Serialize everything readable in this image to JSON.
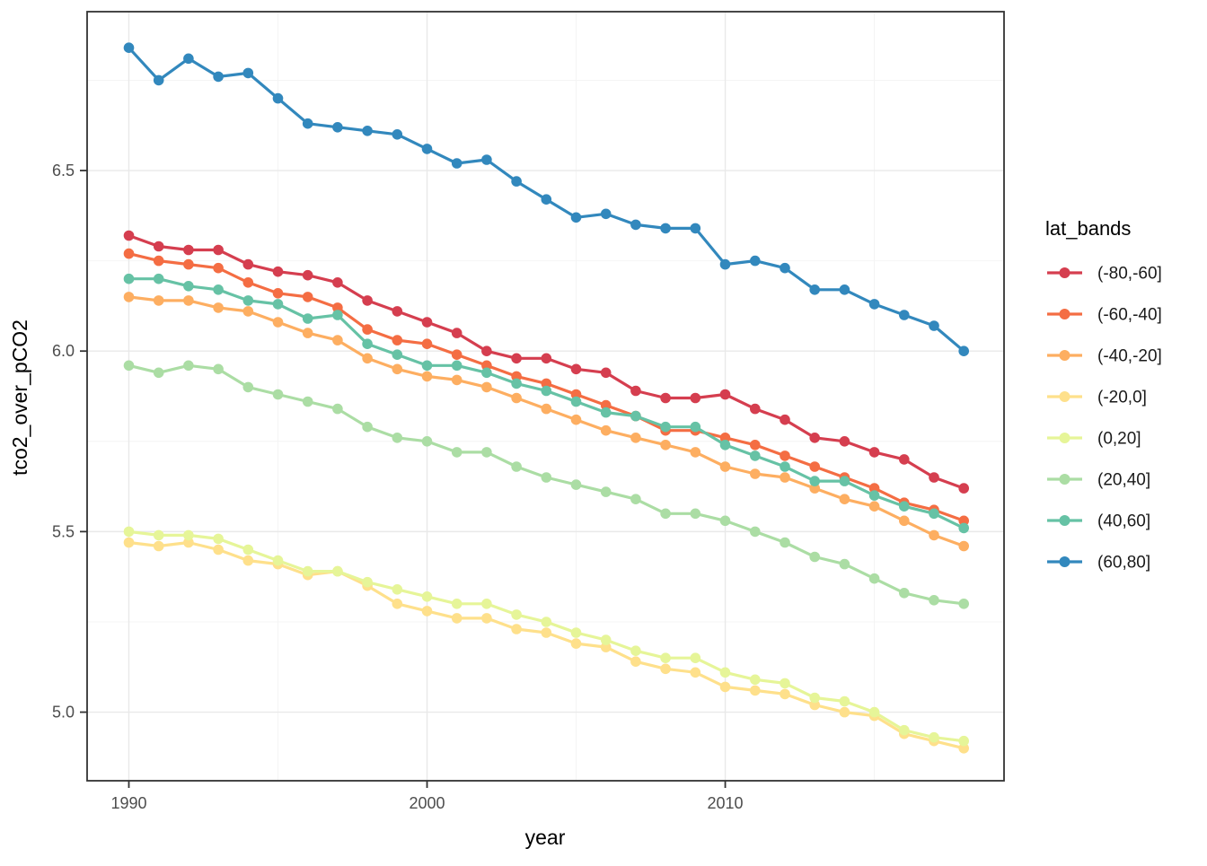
{
  "legend": {
    "title": "lat_bands"
  },
  "chart_data": {
    "type": "line",
    "title": "",
    "xlabel": "year",
    "ylabel": "tco2_over_pCO2",
    "grid": true,
    "legend_position": "right",
    "xlim": [
      1988.6,
      2019.35
    ],
    "ylim": [
      4.81,
      6.94
    ],
    "x_ticks": [
      1990,
      2000,
      2010
    ],
    "x_tick_labels": [
      "1990",
      "2000",
      "2010"
    ],
    "x_minor_ticks": [
      1995,
      2005,
      2015
    ],
    "y_ticks": [
      5.0,
      5.5,
      6.0,
      6.5
    ],
    "y_tick_labels": [
      "5.0",
      "5.5",
      "6.0",
      "6.5"
    ],
    "y_minor_ticks": [
      5.25,
      5.75,
      6.25,
      6.75
    ],
    "x": [
      1990,
      1991,
      1992,
      1993,
      1994,
      1995,
      1996,
      1997,
      1998,
      1999,
      2000,
      2001,
      2002,
      2003,
      2004,
      2005,
      2006,
      2007,
      2008,
      2009,
      2010,
      2011,
      2012,
      2013,
      2014,
      2015,
      2016,
      2017,
      2018
    ],
    "series": [
      {
        "name": "(-80,-60]",
        "color": "#d53e4f",
        "values": [
          6.32,
          6.29,
          6.28,
          6.28,
          6.24,
          6.22,
          6.21,
          6.19,
          6.14,
          6.11,
          6.08,
          6.05,
          6.0,
          5.98,
          5.98,
          5.95,
          5.94,
          5.89,
          5.87,
          5.87,
          5.88,
          5.84,
          5.81,
          5.76,
          5.75,
          5.72,
          5.7,
          5.65,
          5.62
        ]
      },
      {
        "name": "(-60,-40]",
        "color": "#f46d43",
        "values": [
          6.27,
          6.25,
          6.24,
          6.23,
          6.19,
          6.16,
          6.15,
          6.12,
          6.06,
          6.03,
          6.02,
          5.99,
          5.96,
          5.93,
          5.91,
          5.88,
          5.85,
          5.82,
          5.78,
          5.78,
          5.76,
          5.74,
          5.71,
          5.68,
          5.65,
          5.62,
          5.58,
          5.56,
          5.53
        ]
      },
      {
        "name": "(-40,-20]",
        "color": "#fdae61",
        "values": [
          6.15,
          6.14,
          6.14,
          6.12,
          6.11,
          6.08,
          6.05,
          6.03,
          5.98,
          5.95,
          5.93,
          5.92,
          5.9,
          5.87,
          5.84,
          5.81,
          5.78,
          5.76,
          5.74,
          5.72,
          5.68,
          5.66,
          5.65,
          5.62,
          5.59,
          5.57,
          5.53,
          5.49,
          5.46
        ]
      },
      {
        "name": "(-20,0]",
        "color": "#fee08b",
        "values": [
          5.47,
          5.46,
          5.47,
          5.45,
          5.42,
          5.41,
          5.38,
          5.39,
          5.35,
          5.3,
          5.28,
          5.26,
          5.26,
          5.23,
          5.22,
          5.19,
          5.18,
          5.14,
          5.12,
          5.11,
          5.07,
          5.06,
          5.05,
          5.02,
          5.0,
          4.99,
          4.94,
          4.92,
          4.9
        ]
      },
      {
        "name": "(0,20]",
        "color": "#e6f598",
        "values": [
          5.5,
          5.49,
          5.49,
          5.48,
          5.45,
          5.42,
          5.39,
          5.39,
          5.36,
          5.34,
          5.32,
          5.3,
          5.3,
          5.27,
          5.25,
          5.22,
          5.2,
          5.17,
          5.15,
          5.15,
          5.11,
          5.09,
          5.08,
          5.04,
          5.03,
          5.0,
          4.95,
          4.93,
          4.92
        ]
      },
      {
        "name": "(20,40]",
        "color": "#abdda4",
        "values": [
          5.96,
          5.94,
          5.96,
          5.95,
          5.9,
          5.88,
          5.86,
          5.84,
          5.79,
          5.76,
          5.75,
          5.72,
          5.72,
          5.68,
          5.65,
          5.63,
          5.61,
          5.59,
          5.55,
          5.55,
          5.53,
          5.5,
          5.47,
          5.43,
          5.41,
          5.37,
          5.33,
          5.31,
          5.3
        ]
      },
      {
        "name": "(40,60]",
        "color": "#66c2a5",
        "values": [
          6.2,
          6.2,
          6.18,
          6.17,
          6.14,
          6.13,
          6.09,
          6.1,
          6.02,
          5.99,
          5.96,
          5.96,
          5.94,
          5.91,
          5.89,
          5.86,
          5.83,
          5.82,
          5.79,
          5.79,
          5.74,
          5.71,
          5.68,
          5.64,
          5.64,
          5.6,
          5.57,
          5.55,
          5.51
        ]
      },
      {
        "name": "(60,80]",
        "color": "#3288bd",
        "values": [
          6.84,
          6.75,
          6.81,
          6.76,
          6.77,
          6.7,
          6.63,
          6.62,
          6.61,
          6.6,
          6.56,
          6.52,
          6.53,
          6.47,
          6.42,
          6.37,
          6.38,
          6.35,
          6.34,
          6.34,
          6.24,
          6.25,
          6.23,
          6.17,
          6.17,
          6.13,
          6.1,
          6.07,
          6.0
        ]
      }
    ]
  }
}
